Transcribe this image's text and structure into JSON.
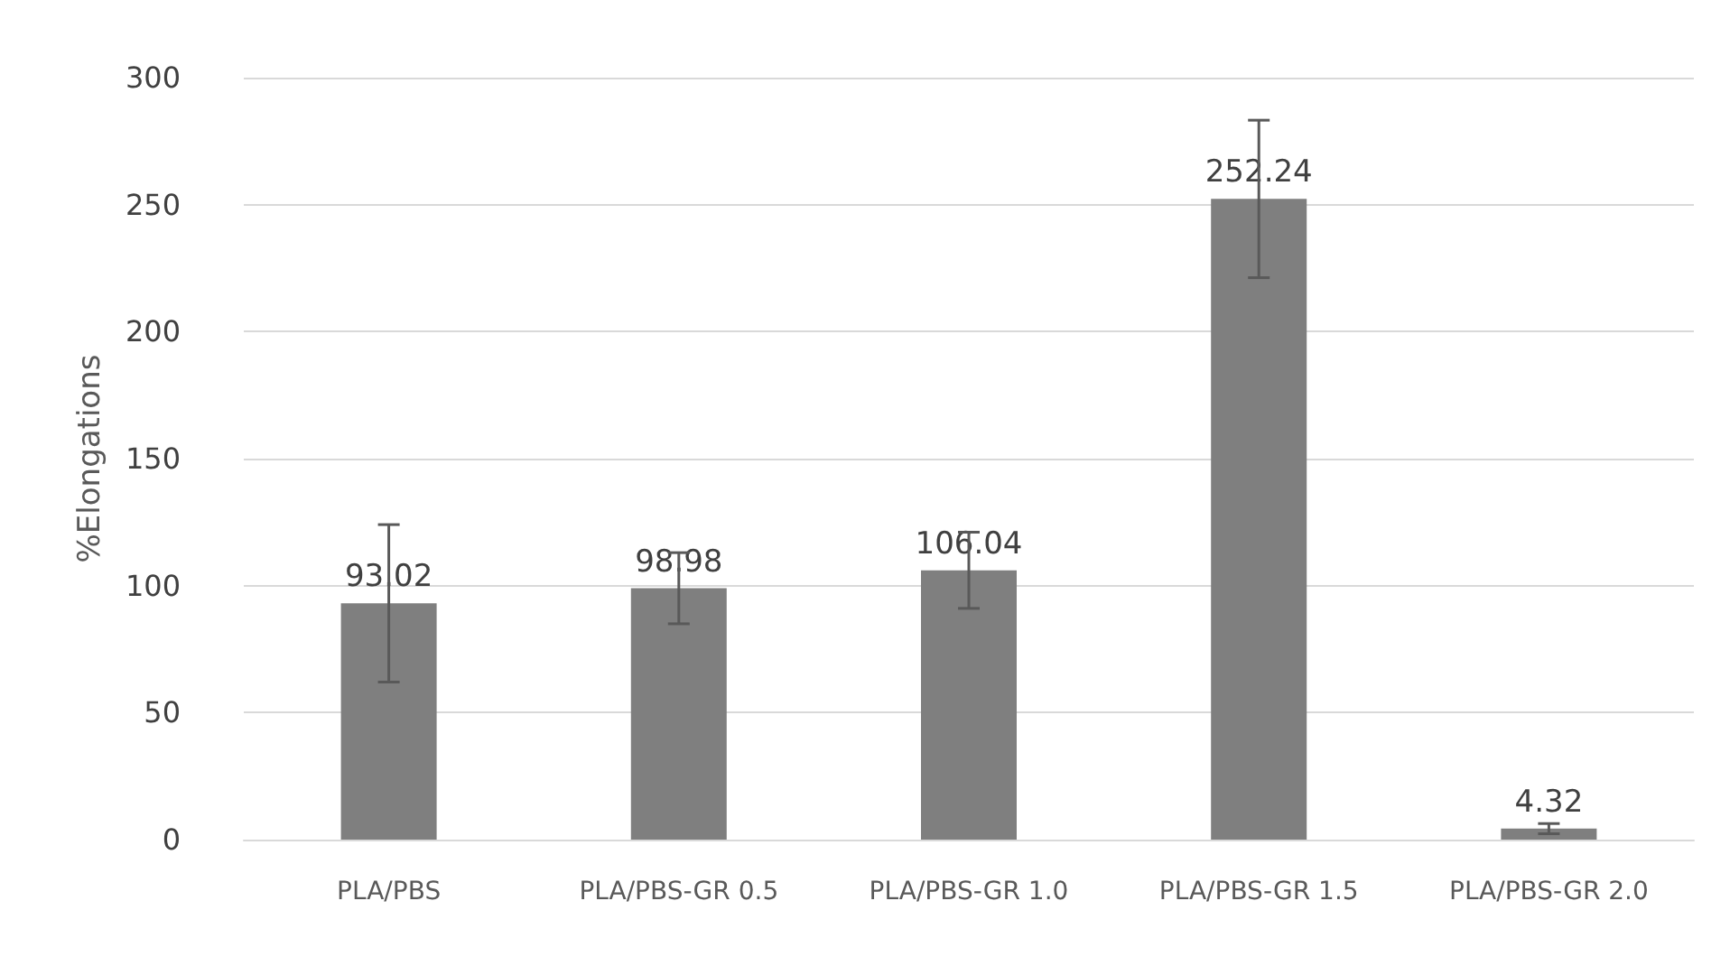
{
  "chart_data": {
    "type": "bar",
    "ylabel": "%Elongations",
    "categories": [
      "PLA/PBS",
      "PLA/PBS-GR 0.5",
      "PLA/PBS-GR 1.0",
      "PLA/PBS-GR 1.5",
      "PLA/PBS-GR 2.0"
    ],
    "values": [
      93.02,
      98.98,
      106.04,
      252.24,
      4.32
    ],
    "errors": [
      31,
      14,
      15,
      31,
      2
    ],
    "color": "#7f7f7f",
    "ylim": [
      0,
      300
    ],
    "yticks": [
      0,
      50,
      100,
      150,
      200,
      250,
      300
    ],
    "grid": "y",
    "data_labels": true
  }
}
